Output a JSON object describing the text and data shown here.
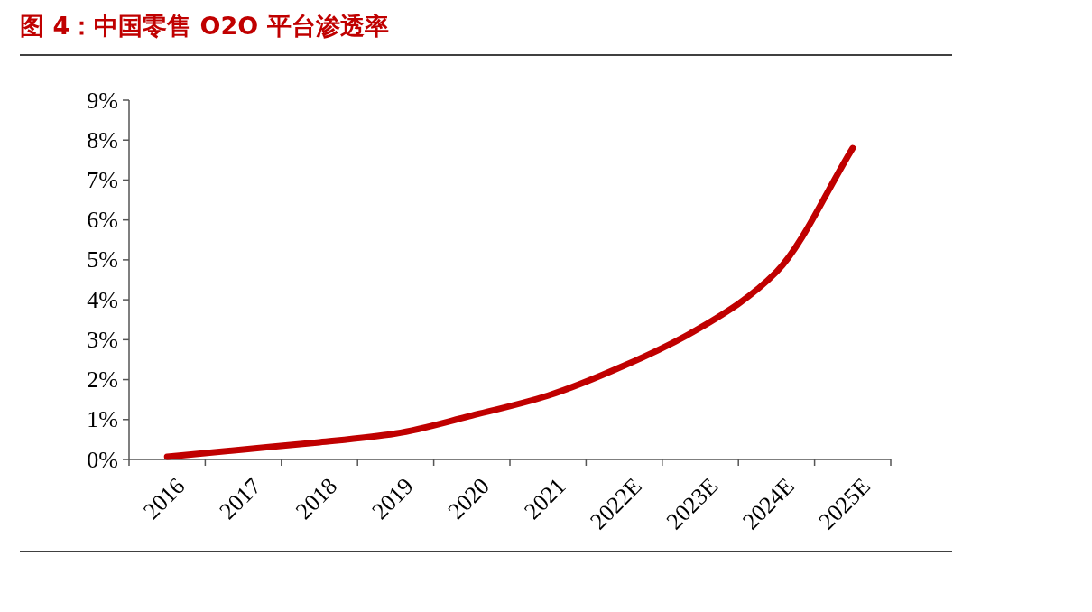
{
  "chart_data": {
    "type": "line",
    "title": "图 4：中国零售 O2O 平台渗透率",
    "categories": [
      "2016",
      "2017",
      "2018",
      "2019",
      "2020",
      "2021",
      "2022E",
      "2023E",
      "2024E",
      "2025E"
    ],
    "series": [
      {
        "color": "#c00000",
        "values": [
          0.07,
          0.25,
          0.43,
          0.65,
          1.1,
          1.6,
          2.35,
          3.3,
          4.7,
          7.8
        ]
      }
    ],
    "ylim": [
      0,
      9
    ],
    "yticks": [
      {
        "value": 0,
        "label": "0%"
      },
      {
        "value": 1,
        "label": "1%"
      },
      {
        "value": 2,
        "label": "2%"
      },
      {
        "value": 3,
        "label": "3%"
      },
      {
        "value": 4,
        "label": "4%"
      },
      {
        "value": 5,
        "label": "5%"
      },
      {
        "value": 6,
        "label": "6%"
      },
      {
        "value": 7,
        "label": "7%"
      },
      {
        "value": 8,
        "label": "8%"
      },
      {
        "value": 9,
        "label": "9%"
      }
    ],
    "grid": false,
    "marker": "none",
    "line_style": "solid"
  }
}
